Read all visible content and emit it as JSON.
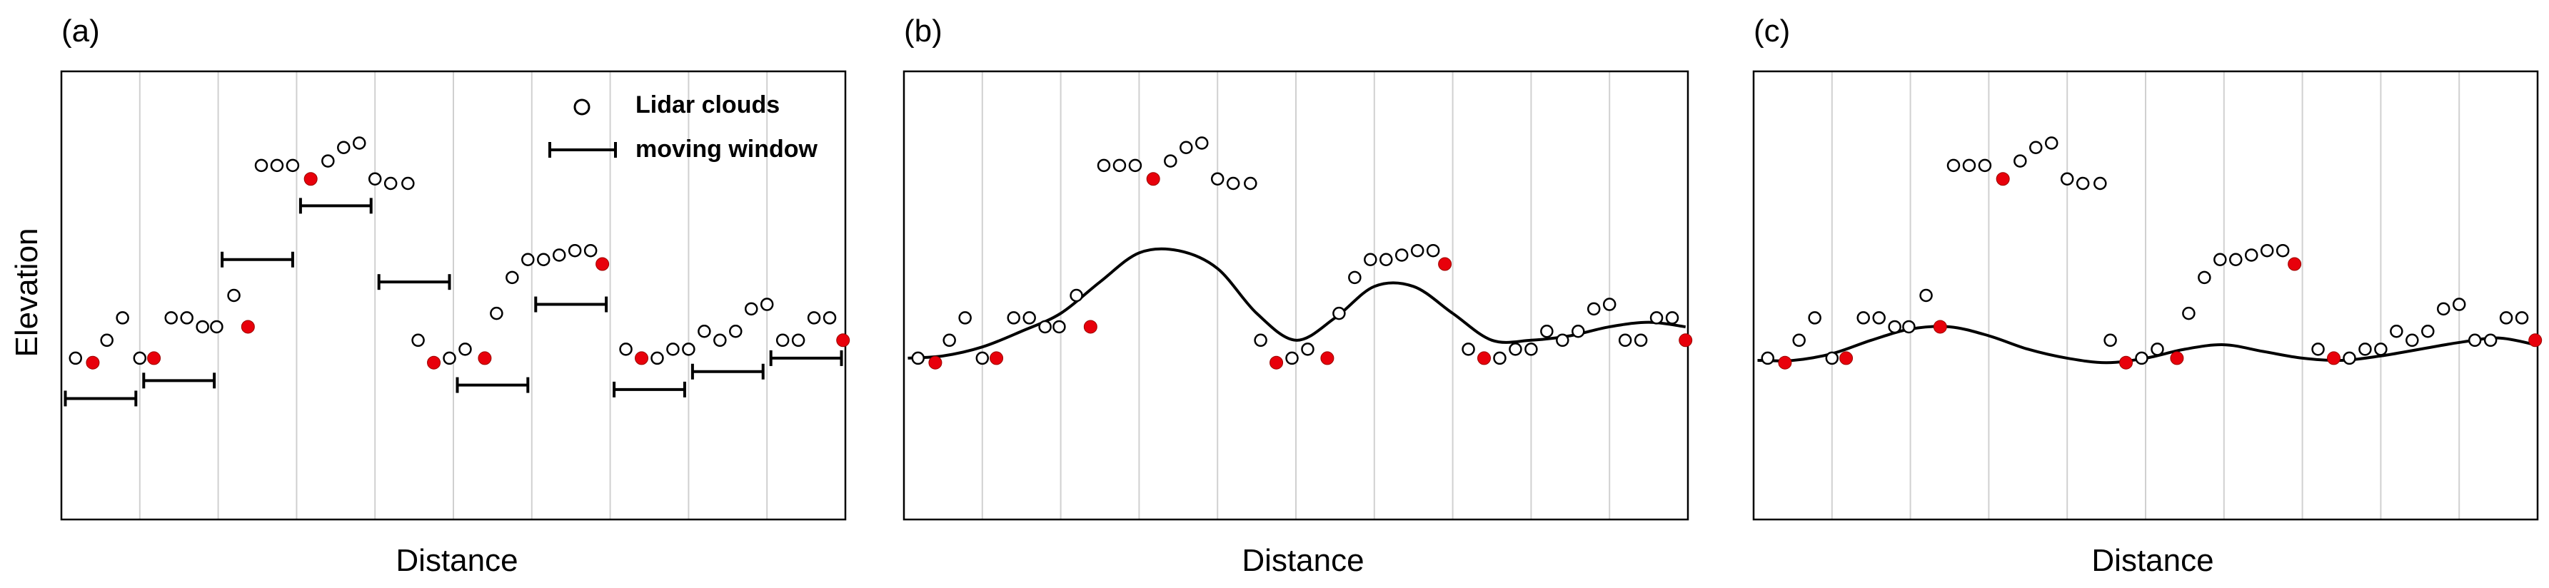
{
  "figure": {
    "ylabel": "Elevation",
    "xlabel": "Distance",
    "legend": {
      "lidar_label": "Lidar clouds",
      "window_label": "moving window"
    },
    "colors": {
      "frame": "#000000",
      "grid": "#d0d0d0",
      "open_point": "#000000",
      "minimum_point": "#e8000b",
      "curve": "#000000"
    }
  },
  "panels": [
    {
      "id": "a",
      "label": "(a)",
      "show_legend": true,
      "show_windows": true,
      "show_curve": false
    },
    {
      "id": "b",
      "label": "(b)",
      "show_legend": false,
      "show_windows": false,
      "show_curve": true
    },
    {
      "id": "c",
      "label": "(c)",
      "show_legend": false,
      "show_windows": false,
      "show_curve": true
    }
  ],
  "chart_data": {
    "type": "scatter",
    "xlabel": "Distance",
    "ylabel": "Elevation",
    "xlim": [
      0,
      10
    ],
    "ylim": [
      0,
      10
    ],
    "grid_x": [
      1,
      2,
      3,
      4,
      5,
      6,
      7,
      8,
      9
    ],
    "lidar_points": [
      [
        0.18,
        3.6
      ],
      [
        0.58,
        4.0
      ],
      [
        0.78,
        4.5
      ],
      [
        1.0,
        3.6
      ],
      [
        1.4,
        4.5
      ],
      [
        1.6,
        4.5
      ],
      [
        1.8,
        4.3
      ],
      [
        1.98,
        4.3
      ],
      [
        2.2,
        5.0
      ],
      [
        2.55,
        7.9
      ],
      [
        2.75,
        7.9
      ],
      [
        2.95,
        7.9
      ],
      [
        3.4,
        8.0
      ],
      [
        3.6,
        8.3
      ],
      [
        3.8,
        8.4
      ],
      [
        4.0,
        7.6
      ],
      [
        4.2,
        7.5
      ],
      [
        4.42,
        7.5
      ],
      [
        4.55,
        4.0
      ],
      [
        4.95,
        3.6
      ],
      [
        5.15,
        3.8
      ],
      [
        5.55,
        4.6
      ],
      [
        5.75,
        5.4
      ],
      [
        5.95,
        5.8
      ],
      [
        6.15,
        5.8
      ],
      [
        6.35,
        5.9
      ],
      [
        6.55,
        6.0
      ],
      [
        6.75,
        6.0
      ],
      [
        7.2,
        3.8
      ],
      [
        7.6,
        3.6
      ],
      [
        7.8,
        3.8
      ],
      [
        8.0,
        3.8
      ],
      [
        8.2,
        4.2
      ],
      [
        8.4,
        4.0
      ],
      [
        8.6,
        4.2
      ],
      [
        8.8,
        4.7
      ],
      [
        9.0,
        4.8
      ],
      [
        9.2,
        4.0
      ],
      [
        9.4,
        4.0
      ],
      [
        9.6,
        4.5
      ],
      [
        9.8,
        4.5
      ]
    ],
    "minimum_points": [
      [
        0.4,
        3.5
      ],
      [
        1.18,
        3.6
      ],
      [
        2.38,
        4.3
      ],
      [
        3.18,
        7.6
      ],
      [
        4.75,
        3.5
      ],
      [
        5.4,
        3.6
      ],
      [
        6.9,
        5.7
      ],
      [
        7.4,
        3.6
      ],
      [
        9.97,
        4.0
      ]
    ],
    "moving_windows": [
      [
        0.05,
        0.95,
        2.7
      ],
      [
        1.05,
        1.95,
        3.1
      ],
      [
        2.05,
        2.95,
        5.8
      ],
      [
        3.05,
        3.95,
        7.0
      ],
      [
        4.05,
        4.95,
        5.3
      ],
      [
        5.05,
        5.95,
        3.0
      ],
      [
        6.05,
        6.95,
        4.8
      ],
      [
        7.05,
        7.95,
        2.9
      ],
      [
        8.05,
        8.95,
        3.3
      ],
      [
        9.05,
        9.95,
        3.6
      ]
    ],
    "fitted_curves": {
      "b": [
        [
          0.05,
          3.6
        ],
        [
          0.5,
          3.65
        ],
        [
          1.0,
          3.85
        ],
        [
          1.5,
          4.2
        ],
        [
          2.0,
          4.6
        ],
        [
          2.5,
          5.3
        ],
        [
          3.0,
          5.95
        ],
        [
          3.5,
          6.0
        ],
        [
          4.0,
          5.6
        ],
        [
          4.5,
          4.6
        ],
        [
          5.0,
          4.0
        ],
        [
          5.5,
          4.5
        ],
        [
          6.0,
          5.2
        ],
        [
          6.5,
          5.2
        ],
        [
          7.0,
          4.6
        ],
        [
          7.5,
          4.0
        ],
        [
          8.0,
          4.0
        ],
        [
          8.5,
          4.1
        ],
        [
          9.0,
          4.3
        ],
        [
          9.5,
          4.4
        ],
        [
          9.97,
          4.3
        ]
      ],
      "c": [
        [
          0.05,
          3.55
        ],
        [
          0.5,
          3.55
        ],
        [
          1.0,
          3.7
        ],
        [
          1.5,
          4.0
        ],
        [
          2.0,
          4.25
        ],
        [
          2.5,
          4.3
        ],
        [
          3.0,
          4.1
        ],
        [
          3.5,
          3.8
        ],
        [
          4.0,
          3.6
        ],
        [
          4.5,
          3.5
        ],
        [
          5.0,
          3.6
        ],
        [
          5.5,
          3.8
        ],
        [
          6.0,
          3.9
        ],
        [
          6.5,
          3.75
        ],
        [
          7.0,
          3.6
        ],
        [
          7.5,
          3.55
        ],
        [
          8.0,
          3.65
        ],
        [
          8.5,
          3.8
        ],
        [
          9.0,
          3.95
        ],
        [
          9.5,
          4.05
        ],
        [
          9.97,
          3.9
        ]
      ]
    }
  }
}
